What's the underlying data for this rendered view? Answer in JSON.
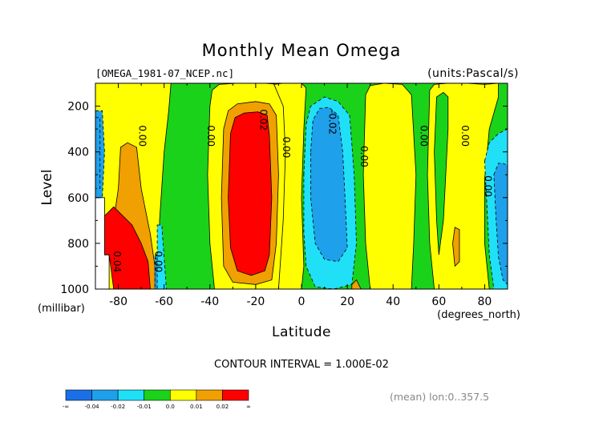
{
  "chart_data": {
    "type": "heatmap",
    "title": "Monthly Mean Omega",
    "source_label": "[OMEGA_1981-07_NCEP.nc]",
    "units_label": "(units:Pascal/s)",
    "xlabel": "Latitude",
    "xunit": "(degrees_north)",
    "ylabel": "Level",
    "yunit": "(millibar)",
    "xlim": [
      -90,
      90
    ],
    "ylim": [
      1000,
      100
    ],
    "y_inverted": true,
    "x_ticks": [
      -80,
      -60,
      -40,
      -20,
      0,
      20,
      40,
      60,
      80
    ],
    "x_tick_labels": [
      "-80",
      "-60",
      "-40",
      "-20",
      "0",
      "20",
      "40",
      "60",
      "80"
    ],
    "y_ticks": [
      200,
      400,
      600,
      800,
      1000
    ],
    "y_tick_labels": [
      "200",
      "400",
      "600",
      "800",
      "1000"
    ],
    "contour_interval_label": "CONTOUR INTERVAL = 1.000E-02",
    "footer_label": "(mean) lon:0..357.5",
    "colorbar": {
      "labels": [
        "-∞",
        "-0.04",
        "-0.02",
        "-0.01",
        "0.0",
        "0.01",
        "0.02",
        "∞"
      ],
      "colors": [
        "#1a6fe8",
        "#1fa0ea",
        "#20e0f8",
        "#1ad21a",
        "#ffff00",
        "#f0a000",
        "#ff0000"
      ]
    },
    "regions": [
      {
        "fill": "#1ad21a",
        "pts": [
          [
            -90,
            100
          ],
          [
            90,
            100
          ],
          [
            90,
            1000
          ],
          [
            -90,
            1000
          ]
        ]
      },
      {
        "fill": "#ffff00",
        "pts": [
          [
            -90,
            100
          ],
          [
            -57,
            100
          ],
          [
            -58,
            220
          ],
          [
            -60,
            400
          ],
          [
            -62,
            700
          ],
          [
            -62,
            1000
          ],
          [
            -90,
            1000
          ]
        ]
      },
      {
        "fill": "#1fa0ea",
        "pts": [
          [
            -90,
            220
          ],
          [
            -87,
            220
          ],
          [
            -86,
            400
          ],
          [
            -87,
            600
          ],
          [
            -90,
            600
          ]
        ]
      },
      {
        "fill": "#ffffff",
        "pts": [
          [
            -90,
            600
          ],
          [
            -86,
            600
          ],
          [
            -86,
            850
          ],
          [
            -84,
            850
          ],
          [
            -84,
            1000
          ],
          [
            -90,
            1000
          ]
        ]
      },
      {
        "fill": "#f0a000",
        "pts": [
          [
            -80,
            560
          ],
          [
            -79,
            380
          ],
          [
            -76,
            360
          ],
          [
            -72,
            380
          ],
          [
            -70,
            560
          ],
          [
            -66,
            760
          ],
          [
            -64,
            900
          ],
          [
            -64,
            1000
          ],
          [
            -81,
            1000
          ],
          [
            -82,
            700
          ]
        ]
      },
      {
        "fill": "#ff0000",
        "pts": [
          [
            -86,
            680
          ],
          [
            -82,
            640
          ],
          [
            -79,
            670
          ],
          [
            -74,
            720
          ],
          [
            -70,
            800
          ],
          [
            -67,
            880
          ],
          [
            -66,
            1000
          ],
          [
            -82,
            1000
          ],
          [
            -84,
            850
          ],
          [
            -86,
            850
          ]
        ]
      },
      {
        "fill": "#1fa0ea",
        "pts": [
          [
            -64,
            850
          ],
          [
            -62,
            850
          ],
          [
            -60,
            1000
          ],
          [
            -64,
            1000
          ]
        ]
      },
      {
        "fill": "#20e0f8",
        "pts": [
          [
            -63,
            720
          ],
          [
            -61,
            720
          ],
          [
            -59,
            1000
          ],
          [
            -63,
            1000
          ]
        ]
      },
      {
        "fill": "#ffff00",
        "pts": [
          [
            -40,
            200
          ],
          [
            -39,
            130
          ],
          [
            -36,
            105
          ],
          [
            -28,
            100
          ],
          [
            -16,
            100
          ],
          [
            -10,
            105
          ],
          [
            -8,
            130
          ],
          [
            -7,
            220
          ],
          [
            -7,
            500
          ],
          [
            -8,
            800
          ],
          [
            -10,
            1000
          ],
          [
            -38,
            1000
          ],
          [
            -40,
            800
          ],
          [
            -41,
            500
          ]
        ]
      },
      {
        "fill": "#f0a000",
        "pts": [
          [
            -34,
            300
          ],
          [
            -32,
            220
          ],
          [
            -28,
            190
          ],
          [
            -20,
            180
          ],
          [
            -14,
            190
          ],
          [
            -11,
            240
          ],
          [
            -10,
            500
          ],
          [
            -11,
            800
          ],
          [
            -13,
            960
          ],
          [
            -20,
            980
          ],
          [
            -30,
            970
          ],
          [
            -34,
            900
          ],
          [
            -35,
            600
          ]
        ]
      },
      {
        "fill": "#ff0000",
        "pts": [
          [
            -31,
            320
          ],
          [
            -29,
            250
          ],
          [
            -25,
            230
          ],
          [
            -19,
            225
          ],
          [
            -15,
            240
          ],
          [
            -14,
            330
          ],
          [
            -13,
            600
          ],
          [
            -14,
            850
          ],
          [
            -16,
            920
          ],
          [
            -22,
            940
          ],
          [
            -28,
            920
          ],
          [
            -31,
            820
          ],
          [
            -32,
            600
          ]
        ]
      },
      {
        "fill": "#ffff00",
        "pts": [
          [
            -12,
            105
          ],
          [
            -8,
            100
          ],
          [
            0,
            100
          ],
          [
            2,
            120
          ],
          [
            1,
            300
          ],
          [
            0,
            600
          ],
          [
            1,
            900
          ],
          [
            0,
            1000
          ],
          [
            -10,
            1000
          ],
          [
            -8,
            700
          ],
          [
            -7,
            400
          ],
          [
            -8,
            200
          ]
        ]
      },
      {
        "fill": "#20e0f8",
        "pts": [
          [
            1,
            500
          ],
          [
            2,
            280
          ],
          [
            4,
            200
          ],
          [
            10,
            160
          ],
          [
            16,
            180
          ],
          [
            21,
            240
          ],
          [
            23,
            500
          ],
          [
            24,
            800
          ],
          [
            22,
            980
          ],
          [
            14,
            1000
          ],
          [
            6,
            990
          ],
          [
            2,
            900
          ],
          [
            1,
            750
          ]
        ]
      },
      {
        "fill": "#1fa0ea",
        "pts": [
          [
            4,
            400
          ],
          [
            5,
            260
          ],
          [
            8,
            210
          ],
          [
            12,
            205
          ],
          [
            16,
            240
          ],
          [
            18,
            400
          ],
          [
            19,
            600
          ],
          [
            20,
            820
          ],
          [
            16,
            880
          ],
          [
            10,
            870
          ],
          [
            6,
            800
          ],
          [
            4,
            600
          ]
        ]
      },
      {
        "fill": "#ffff00",
        "pts": [
          [
            28,
            150
          ],
          [
            30,
            110
          ],
          [
            36,
            100
          ],
          [
            44,
            105
          ],
          [
            48,
            150
          ],
          [
            50,
            500
          ],
          [
            49,
            800
          ],
          [
            48,
            1000
          ],
          [
            30,
            1000
          ],
          [
            28,
            800
          ],
          [
            27,
            500
          ]
        ]
      },
      {
        "fill": "#ffff00",
        "pts": [
          [
            56,
            130
          ],
          [
            58,
            105
          ],
          [
            64,
            100
          ],
          [
            72,
            100
          ],
          [
            80,
            105
          ],
          [
            86,
            100
          ],
          [
            86,
            160
          ],
          [
            82,
            300
          ],
          [
            80,
            520
          ],
          [
            80,
            800
          ],
          [
            82,
            1000
          ],
          [
            58,
            1000
          ],
          [
            56,
            800
          ],
          [
            55,
            500
          ]
        ]
      },
      {
        "fill": "#1ad21a",
        "pts": [
          [
            59,
            160
          ],
          [
            62,
            140
          ],
          [
            64,
            160
          ],
          [
            64,
            300
          ],
          [
            63,
            500
          ],
          [
            62,
            700
          ],
          [
            60,
            850
          ],
          [
            59,
            700
          ],
          [
            58,
            400
          ]
        ]
      },
      {
        "fill": "#f0a000",
        "pts": [
          [
            66,
            800
          ],
          [
            67,
            730
          ],
          [
            69,
            740
          ],
          [
            69,
            880
          ],
          [
            67,
            900
          ]
        ]
      },
      {
        "fill": "#f0a000",
        "pts": [
          [
            22,
            980
          ],
          [
            24,
            960
          ],
          [
            26,
            1000
          ],
          [
            22,
            1000
          ]
        ]
      },
      {
        "fill": "#1fa0ea",
        "pts": [
          [
            -90,
            250
          ],
          [
            -88,
            250
          ],
          [
            -88,
            560
          ],
          [
            -90,
            560
          ]
        ]
      },
      {
        "fill": "#20e0f8",
        "pts": [
          [
            80,
            440
          ],
          [
            82,
            360
          ],
          [
            86,
            320
          ],
          [
            90,
            300
          ],
          [
            90,
            1000
          ],
          [
            84,
            1000
          ],
          [
            82,
            850
          ],
          [
            81,
            640
          ]
        ]
      },
      {
        "fill": "#1fa0ea",
        "pts": [
          [
            84,
            500
          ],
          [
            86,
            450
          ],
          [
            88,
            450
          ],
          [
            90,
            460
          ],
          [
            90,
            980
          ],
          [
            88,
            960
          ],
          [
            86,
            860
          ],
          [
            85,
            700
          ]
        ]
      }
    ],
    "contour_labels": [
      {
        "text": "0.00",
        "x": -71,
        "y": 330
      },
      {
        "text": "0.00",
        "x": -41,
        "y": 330
      },
      {
        "text": "0.02",
        "x": -18,
        "y": 260
      },
      {
        "text": "0.00",
        "x": -8,
        "y": 380
      },
      {
        "text": "-0.02",
        "x": 12,
        "y": 270
      },
      {
        "text": "0.00",
        "x": 26,
        "y": 420
      },
      {
        "text": "0.00",
        "x": 52,
        "y": 330
      },
      {
        "text": "0.00",
        "x": 70,
        "y": 330
      },
      {
        "text": "0.00",
        "x": 80,
        "y": 550
      },
      {
        "text": "0.04",
        "x": -82,
        "y": 880
      },
      {
        "text": "0.00",
        "x": -64,
        "y": 880
      }
    ]
  }
}
